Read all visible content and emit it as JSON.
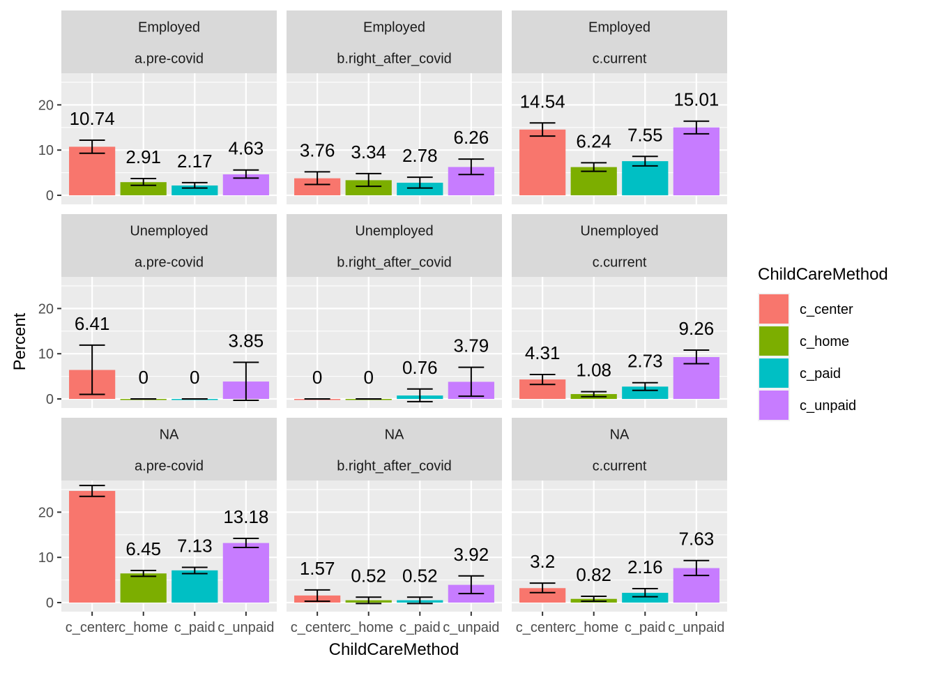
{
  "chart_data": {
    "type": "bar",
    "xlabel": "ChildCareMethod",
    "ylabel": "Percent",
    "ylim": [
      -2,
      27
    ],
    "y_ticks": [
      0,
      10,
      20
    ],
    "grid": true,
    "legend_position": "right",
    "legend": {
      "title": "ChildCareMethod",
      "entries": [
        {
          "name": "c_center",
          "color": "#F8766D"
        },
        {
          "name": "c_home",
          "color": "#7CAE00"
        },
        {
          "name": "c_paid",
          "color": "#00BFC4"
        },
        {
          "name": "c_unpaid",
          "color": "#C77CFF"
        }
      ]
    },
    "categories": [
      "c_center",
      "c_home",
      "c_paid",
      "c_unpaid"
    ],
    "col_facets": [
      "a.pre-covid",
      "b.right_after_covid",
      "c.current"
    ],
    "row_facets": [
      "Employed",
      "Unemployed",
      "NA"
    ],
    "panels": [
      {
        "row": "Employed",
        "col": "a.pre-covid",
        "values": [
          10.74,
          2.91,
          2.17,
          4.63
        ],
        "labels": [
          "10.74",
          "2.91",
          "2.17",
          "4.63"
        ],
        "err_low": [
          9.3,
          2.2,
          1.6,
          3.8
        ],
        "err_high": [
          12.2,
          3.7,
          2.8,
          5.6
        ]
      },
      {
        "row": "Employed",
        "col": "b.right_after_covid",
        "values": [
          3.76,
          3.34,
          2.78,
          6.26
        ],
        "labels": [
          "3.76",
          "3.34",
          "2.78",
          "6.26"
        ],
        "err_low": [
          2.4,
          2.0,
          1.6,
          4.6
        ],
        "err_high": [
          5.2,
          4.8,
          4.0,
          8.0
        ]
      },
      {
        "row": "Employed",
        "col": "c.current",
        "values": [
          14.54,
          6.24,
          7.55,
          15.01
        ],
        "labels": [
          "14.54",
          "6.24",
          "7.55",
          "15.01"
        ],
        "err_low": [
          13.1,
          5.3,
          6.5,
          13.6
        ],
        "err_high": [
          16.0,
          7.2,
          8.6,
          16.4
        ]
      },
      {
        "row": "Unemployed",
        "col": "a.pre-covid",
        "values": [
          6.41,
          0,
          0,
          3.85
        ],
        "labels": [
          "6.41",
          "0",
          "0",
          "3.85"
        ],
        "err_low": [
          1.0,
          0,
          0,
          -0.3
        ],
        "err_high": [
          11.9,
          0,
          0,
          8.1
        ]
      },
      {
        "row": "Unemployed",
        "col": "b.right_after_covid",
        "values": [
          0,
          0,
          0.76,
          3.79
        ],
        "labels": [
          "0",
          "0",
          "0.76",
          "3.79"
        ],
        "err_low": [
          0,
          0,
          -0.6,
          0.6
        ],
        "err_high": [
          0,
          0,
          2.2,
          7.0
        ]
      },
      {
        "row": "Unemployed",
        "col": "c.current",
        "values": [
          4.31,
          1.08,
          2.73,
          9.26
        ],
        "labels": [
          "4.31",
          "1.08",
          "2.73",
          "9.26"
        ],
        "err_low": [
          3.2,
          0.5,
          1.9,
          7.8
        ],
        "err_high": [
          5.4,
          1.6,
          3.6,
          10.8
        ]
      },
      {
        "row": "NA",
        "col": "a.pre-covid",
        "values": [
          24.7,
          6.45,
          7.13,
          13.18
        ],
        "labels": [
          "",
          "6.45",
          "7.13",
          "13.18"
        ],
        "err_low": [
          23.5,
          5.8,
          6.4,
          12.2
        ],
        "err_high": [
          25.9,
          7.1,
          7.8,
          14.2
        ]
      },
      {
        "row": "NA",
        "col": "b.right_after_covid",
        "values": [
          1.57,
          0.52,
          0.52,
          3.92
        ],
        "labels": [
          "1.57",
          "0.52",
          "0.52",
          "3.92"
        ],
        "err_low": [
          0.3,
          -0.2,
          -0.2,
          2.0
        ],
        "err_high": [
          2.8,
          1.2,
          1.2,
          5.9
        ]
      },
      {
        "row": "NA",
        "col": "c.current",
        "values": [
          3.2,
          0.82,
          2.16,
          7.63
        ],
        "labels": [
          "3.2",
          "0.82",
          "2.16",
          "7.63"
        ],
        "err_low": [
          2.2,
          0.3,
          1.3,
          6.0
        ],
        "err_high": [
          4.3,
          1.4,
          3.1,
          9.3
        ]
      }
    ]
  }
}
